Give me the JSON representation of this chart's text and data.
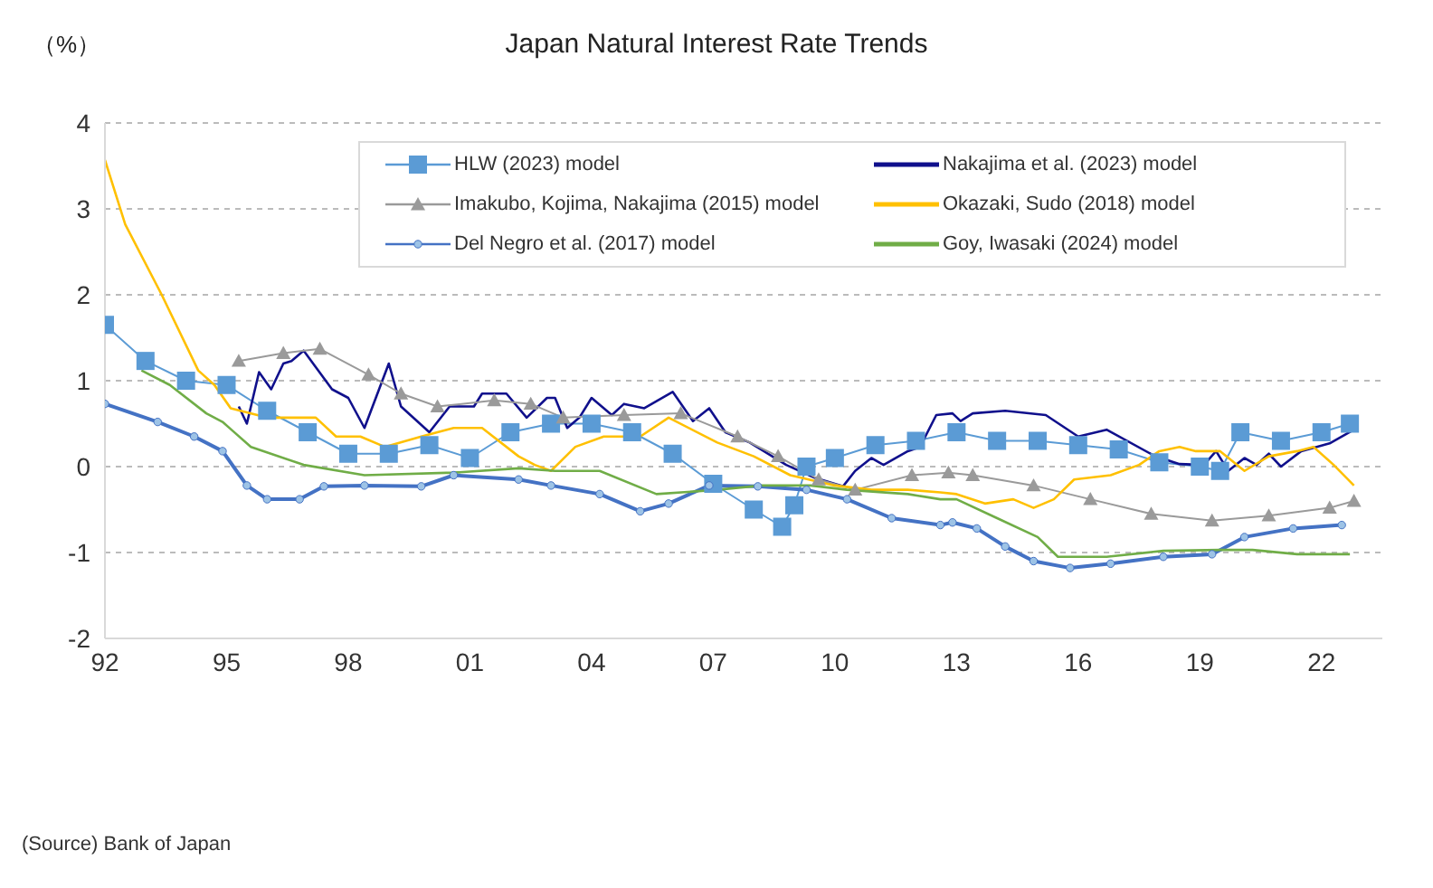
{
  "chart_data": {
    "type": "line",
    "title": "Japan Natural Interest Rate Trends",
    "ylabel": "（%）",
    "annotations": [
      "(Source) Bank of Japan"
    ],
    "xlim": [
      1992,
      2023.5
    ],
    "xticks": [
      {
        "value": 1992,
        "label": "92"
      },
      {
        "value": 1995,
        "label": "95"
      },
      {
        "value": 1998,
        "label": "98"
      },
      {
        "value": 2001,
        "label": "01"
      },
      {
        "value": 2004,
        "label": "04"
      },
      {
        "value": 2007,
        "label": "07"
      },
      {
        "value": 2010,
        "label": "10"
      },
      {
        "value": 2013,
        "label": "13"
      },
      {
        "value": 2016,
        "label": "16"
      },
      {
        "value": 2019,
        "label": "19"
      },
      {
        "value": 2022,
        "label": "22"
      }
    ],
    "ylim": [
      -2,
      4
    ],
    "yticks": [
      -2,
      -1,
      0,
      1,
      2,
      3,
      4
    ],
    "grid": "y",
    "legend": "top",
    "line_style": "solid",
    "series": [
      {
        "name": "HLW (2023) model",
        "color": "#5b9bd5",
        "marker": "square",
        "x": [
          1992,
          1993,
          1994,
          1995,
          1996,
          1997,
          1998,
          1999,
          2000,
          2001,
          2002,
          2003,
          2004,
          2005,
          2006,
          2007,
          2008,
          2008.7,
          2009,
          2009.3,
          2010,
          2011,
          2012,
          2013,
          2014,
          2015,
          2016,
          2017,
          2018,
          2019,
          2019.5,
          2020,
          2021,
          2022,
          2022.7
        ],
        "values": [
          1.65,
          1.23,
          1.0,
          0.95,
          0.65,
          0.4,
          0.15,
          0.15,
          0.25,
          0.1,
          0.4,
          0.5,
          0.5,
          0.4,
          0.15,
          -0.2,
          -0.5,
          -0.7,
          -0.45,
          0.0,
          0.1,
          0.25,
          0.3,
          0.4,
          0.3,
          0.3,
          0.25,
          0.2,
          0.05,
          0.0,
          -0.05,
          0.4,
          0.3,
          0.4,
          0.5
        ]
      },
      {
        "name": "Nakajima et al. (2023) model",
        "color": "#10108c",
        "marker": "none",
        "x": [
          1995.3,
          1995.5,
          1995.8,
          1996.1,
          1996.4,
          1996.6,
          1996.9,
          1997.6,
          1998.0,
          1998.4,
          1999.0,
          1999.3,
          2000.0,
          2000.5,
          2001.1,
          2001.3,
          2001.9,
          2002.4,
          2002.9,
          2003.1,
          2003.4,
          2003.7,
          2004.0,
          2004.5,
          2004.8,
          2005.3,
          2006.0,
          2006.5,
          2006.9,
          2007.3,
          2007.9,
          2008.8,
          2009.5,
          2010.2,
          2010.5,
          2010.9,
          2011.2,
          2011.8,
          2012.1,
          2012.5,
          2012.9,
          2013.1,
          2013.4,
          2014.2,
          2015.2,
          2016.0,
          2016.7,
          2017.9,
          2018.5,
          2019.1,
          2019.4,
          2019.7,
          2020.1,
          2020.4,
          2020.7,
          2021.0,
          2021.5,
          2022.2,
          2022.8
        ],
        "values": [
          0.7,
          0.5,
          1.1,
          0.9,
          1.2,
          1.23,
          1.35,
          0.9,
          0.8,
          0.45,
          1.2,
          0.7,
          0.4,
          0.7,
          0.7,
          0.85,
          0.85,
          0.57,
          0.8,
          0.8,
          0.45,
          0.57,
          0.8,
          0.6,
          0.73,
          0.68,
          0.87,
          0.53,
          0.68,
          0.4,
          0.28,
          0.02,
          -0.13,
          -0.23,
          -0.05,
          0.1,
          0.02,
          0.18,
          0.23,
          0.6,
          0.62,
          0.53,
          0.62,
          0.65,
          0.6,
          0.35,
          0.43,
          0.12,
          0.03,
          0.02,
          0.18,
          -0.05,
          0.1,
          0.02,
          0.15,
          0.0,
          0.18,
          0.27,
          0.43
        ]
      },
      {
        "name": "Imakubo, Kojima, Nakajima (2015) model",
        "color": "#9a9a9a",
        "marker": "triangle",
        "x": [
          1995.3,
          1996.4,
          1997.3,
          1998.5,
          1999.3,
          2000.2,
          2001.6,
          2002.5,
          2003.3,
          2004.8,
          2006.2,
          2007.6,
          2008.6,
          2009.6,
          2010.5,
          2011.9,
          2012.8,
          2013.4,
          2014.9,
          2016.3,
          2017.8,
          2019.3,
          2020.7,
          2022.2,
          2022.8
        ],
        "values": [
          1.23,
          1.32,
          1.37,
          1.07,
          0.85,
          0.7,
          0.77,
          0.73,
          0.57,
          0.6,
          0.62,
          0.35,
          0.12,
          -0.15,
          -0.27,
          -0.1,
          -0.07,
          -0.1,
          -0.22,
          -0.38,
          -0.55,
          -0.63,
          -0.57,
          -0.48,
          -0.4
        ]
      },
      {
        "name": "Okazaki, Sudo (2018) model",
        "color": "#ffc000",
        "marker": "none",
        "x": [
          1992,
          1992.5,
          1993.4,
          1994.3,
          1994.7,
          1995.1,
          1996.0,
          1997.2,
          1997.7,
          1998.3,
          1998.9,
          1999.8,
          2000.6,
          2001.3,
          2002.2,
          2002.6,
          2003.0,
          2003.6,
          2004.3,
          2005.2,
          2005.9,
          2007.1,
          2008.0,
          2008.9,
          2010.0,
          2010.9,
          2011.8,
          2012.6,
          2013.0,
          2013.7,
          2014.4,
          2014.9,
          2015.4,
          2015.9,
          2016.8,
          2017.5,
          2018.0,
          2018.5,
          2018.9,
          2019.5,
          2020.1,
          2020.7,
          2021.4,
          2021.8,
          2022.3,
          2022.8
        ],
        "values": [
          3.57,
          2.82,
          2.0,
          1.12,
          0.95,
          0.68,
          0.57,
          0.57,
          0.35,
          0.35,
          0.23,
          0.35,
          0.45,
          0.45,
          0.12,
          0.02,
          -0.05,
          0.23,
          0.35,
          0.35,
          0.57,
          0.28,
          0.12,
          -0.1,
          -0.22,
          -0.27,
          -0.27,
          -0.3,
          -0.32,
          -0.43,
          -0.38,
          -0.48,
          -0.38,
          -0.15,
          -0.1,
          0.02,
          0.18,
          0.23,
          0.18,
          0.18,
          -0.05,
          0.12,
          0.18,
          0.23,
          0.02,
          -0.22
        ]
      },
      {
        "name": "Del Negro et al. (2017) model",
        "color": "#4472c4",
        "marker": "circle",
        "x": [
          1992,
          1993.3,
          1994.2,
          1994.9,
          1995.5,
          1996.0,
          1996.8,
          1997.4,
          1998.4,
          1999.8,
          2000.6,
          2002.2,
          2003.0,
          2004.2,
          2005.2,
          2005.9,
          2006.9,
          2008.1,
          2009.3,
          2010.3,
          2011.4,
          2012.6,
          2012.9,
          2013.5,
          2014.2,
          2014.9,
          2015.8,
          2016.8,
          2018.1,
          2019.3,
          2020.1,
          2021.3,
          2022.5
        ],
        "values": [
          0.73,
          0.52,
          0.35,
          0.18,
          -0.22,
          -0.38,
          -0.38,
          -0.23,
          -0.22,
          -0.23,
          -0.1,
          -0.15,
          -0.22,
          -0.32,
          -0.52,
          -0.43,
          -0.22,
          -0.23,
          -0.27,
          -0.38,
          -0.6,
          -0.68,
          -0.65,
          -0.72,
          -0.93,
          -1.1,
          -1.18,
          -1.13,
          -1.05,
          -1.02,
          -0.82,
          -0.72,
          -0.68
        ]
      },
      {
        "name": "Goy, Iwasaki (2024) model",
        "color": "#70ad47",
        "marker": "none",
        "x": [
          1992.9,
          1993.6,
          1994.5,
          1994.9,
          1995.6,
          1996.9,
          1998.4,
          2000.6,
          2002.2,
          2003.1,
          2004.2,
          2005.6,
          2007.1,
          2008.2,
          2009.4,
          2010.3,
          2011.8,
          2012.6,
          2013.0,
          2014.0,
          2015.0,
          2015.5,
          2016.7,
          2018.1,
          2019.5,
          2020.3,
          2021.4,
          2022.7
        ],
        "values": [
          1.12,
          0.95,
          0.62,
          0.52,
          0.23,
          0.02,
          -0.1,
          -0.07,
          -0.02,
          -0.05,
          -0.05,
          -0.32,
          -0.27,
          -0.22,
          -0.22,
          -0.27,
          -0.32,
          -0.38,
          -0.38,
          -0.6,
          -0.82,
          -1.05,
          -1.05,
          -0.98,
          -0.97,
          -0.97,
          -1.02,
          -1.02
        ]
      }
    ]
  }
}
